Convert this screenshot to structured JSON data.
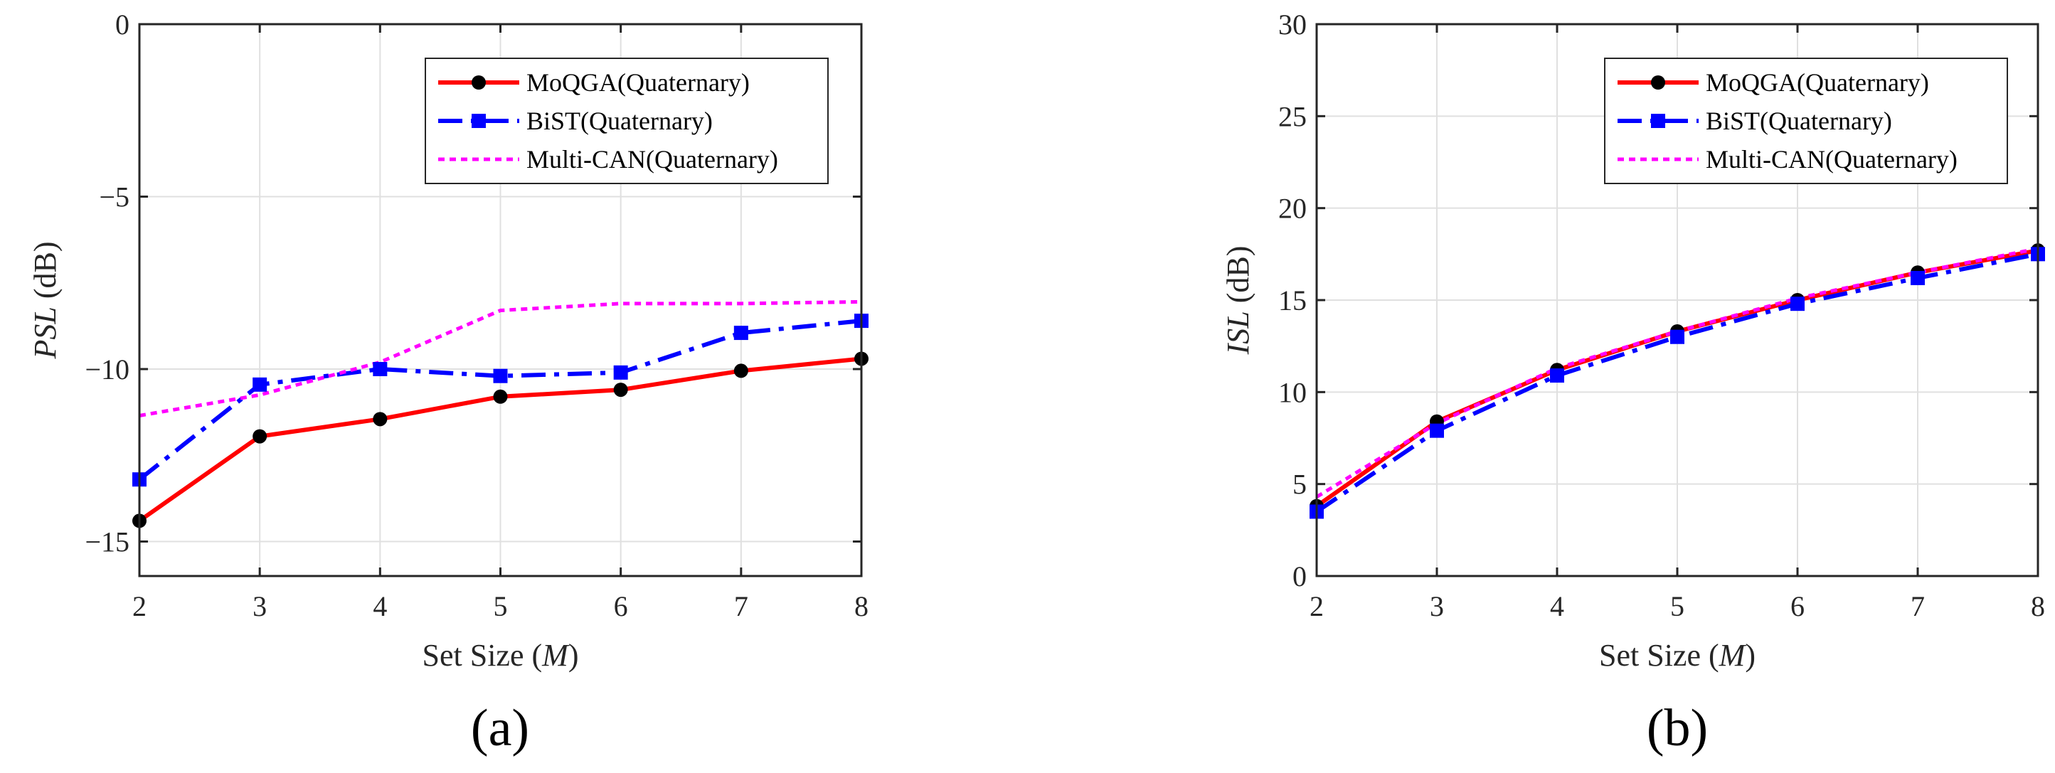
{
  "chart_data": [
    {
      "type": "line",
      "panel_label": "(a)",
      "x": [
        2,
        3,
        4,
        5,
        6,
        7,
        8
      ],
      "xlabel_prefix": "Set Size (",
      "xlabel_var": "M",
      "xlabel_suffix": ")",
      "ylabel_var": "PSL",
      "ylabel_unit": " (dB)",
      "xlim": [
        2,
        8
      ],
      "ylim": [
        -16,
        0
      ],
      "xticks": [
        "2",
        "3",
        "4",
        "5",
        "6",
        "7",
        "8"
      ],
      "yticks": [
        {
          "value": 0,
          "label": "0"
        },
        {
          "value": -5,
          "label": "−5"
        },
        {
          "value": -10,
          "label": "−10"
        },
        {
          "value": -15,
          "label": "−15"
        }
      ],
      "grid": true,
      "legend_position": "top-right",
      "series": [
        {
          "name": "MoQGA(Quaternary)",
          "color": "#ff0000",
          "style": "solid",
          "marker": "circle",
          "values": [
            -14.4,
            -11.95,
            -11.45,
            -10.8,
            -10.6,
            -10.05,
            -9.7
          ]
        },
        {
          "name": "BiST(Quaternary)",
          "color": "#0000ff",
          "style": "dashdot",
          "marker": "square",
          "values": [
            -13.2,
            -10.45,
            -10.0,
            -10.2,
            -10.1,
            -8.95,
            -8.6
          ]
        },
        {
          "name": "Multi-CAN(Quaternary)",
          "color": "#ff00ff",
          "style": "dotted",
          "marker": "none",
          "values": [
            -11.35,
            -10.75,
            -9.8,
            -8.3,
            -8.1,
            -8.1,
            -8.05
          ]
        }
      ]
    },
    {
      "type": "line",
      "panel_label": "(b)",
      "x": [
        2,
        3,
        4,
        5,
        6,
        7,
        8
      ],
      "xlabel_prefix": "Set Size (",
      "xlabel_var": "M",
      "xlabel_suffix": ")",
      "ylabel_var": "ISL",
      "ylabel_unit": " (dB)",
      "xlim": [
        2,
        8
      ],
      "ylim": [
        0,
        30
      ],
      "xticks": [
        "2",
        "3",
        "4",
        "5",
        "6",
        "7",
        "8"
      ],
      "yticks": [
        {
          "value": 0,
          "label": "0"
        },
        {
          "value": 5,
          "label": "5"
        },
        {
          "value": 10,
          "label": "10"
        },
        {
          "value": 15,
          "label": "15"
        },
        {
          "value": 20,
          "label": "20"
        },
        {
          "value": 25,
          "label": "25"
        },
        {
          "value": 30,
          "label": "30"
        }
      ],
      "grid": true,
      "legend_position": "top-left",
      "series": [
        {
          "name": "MoQGA(Quaternary)",
          "color": "#ff0000",
          "style": "solid",
          "marker": "circle",
          "values": [
            3.8,
            8.4,
            11.2,
            13.3,
            15.0,
            16.5,
            17.7
          ]
        },
        {
          "name": "BiST(Quaternary)",
          "color": "#0000ff",
          "style": "dashdot",
          "marker": "square",
          "values": [
            3.5,
            7.9,
            10.9,
            13.0,
            14.8,
            16.2,
            17.5
          ]
        },
        {
          "name": "Multi-CAN(Quaternary)",
          "color": "#ff00ff",
          "style": "dotted",
          "marker": "none",
          "values": [
            4.3,
            8.3,
            11.3,
            13.3,
            15.1,
            16.5,
            17.8
          ]
        }
      ]
    }
  ]
}
